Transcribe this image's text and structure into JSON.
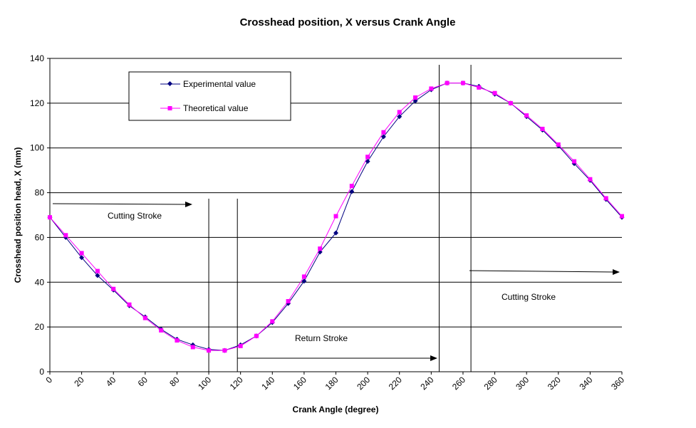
{
  "chart_data": {
    "type": "line",
    "title": "Crosshead position, X versus Crank Angle",
    "xlabel": "Crank Angle (degree)",
    "ylabel": "Crosshead position head, X (mm)",
    "xlim": [
      0,
      360
    ],
    "ylim": [
      0,
      140
    ],
    "x_tick_labels": [
      "0",
      "20",
      "40",
      "60",
      "80",
      "100",
      "120",
      "140",
      "160",
      "180",
      "200",
      "220",
      "240",
      "260",
      "280",
      "300",
      "320",
      "340",
      "360"
    ],
    "y_ticks": [
      0,
      20,
      40,
      60,
      80,
      100,
      120,
      140
    ],
    "grid": "horizontal",
    "legend_position": "top-left",
    "x": [
      0,
      10,
      20,
      30,
      40,
      50,
      60,
      70,
      80,
      90,
      100,
      110,
      120,
      130,
      140,
      150,
      160,
      170,
      180,
      190,
      200,
      210,
      220,
      230,
      240,
      250,
      260,
      270,
      280,
      290,
      300,
      310,
      320,
      330,
      340,
      350,
      360
    ],
    "series": [
      {
        "name": "Experimental value",
        "color": "#000080",
        "marker": "diamond",
        "values": [
          69,
          60,
          51,
          43,
          36.5,
          29.5,
          24.5,
          19,
          14.5,
          12,
          10,
          9.5,
          12,
          16,
          22,
          30.5,
          40.5,
          53.5,
          62,
          80.5,
          94,
          105,
          114,
          121,
          126,
          129,
          129,
          127.5,
          124,
          120,
          114,
          108,
          101,
          93,
          85.5,
          77,
          69
        ]
      },
      {
        "name": "Theoretical value",
        "color": "#ff00ff",
        "marker": "square",
        "values": [
          69,
          61,
          53,
          45,
          37,
          30,
          24,
          18.5,
          14,
          11,
          9.5,
          9.5,
          11.5,
          16,
          22.5,
          31.5,
          42.5,
          55,
          69.5,
          83,
          96,
          107,
          116,
          122.5,
          126.5,
          129,
          129,
          127,
          124.5,
          120,
          114.5,
          108.5,
          101.5,
          94,
          86,
          77.5,
          69.5
        ]
      }
    ],
    "annotations": [
      {
        "text": "Cutting Stroke"
      },
      {
        "text": "Return Stroke"
      },
      {
        "text": "Cutting Stroke"
      }
    ],
    "reference_lines_x": [
      100,
      118,
      245,
      265
    ]
  }
}
